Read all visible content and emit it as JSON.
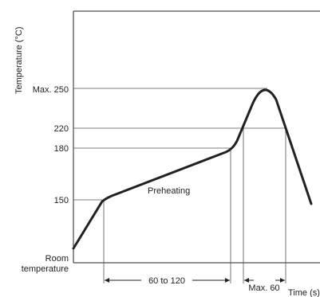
{
  "chart_data": {
    "type": "line",
    "ylabel": "Temperature (°C)",
    "xlabel": "Time (s)",
    "y_ticks": [
      {
        "label": "Max. 250",
        "value": 250
      },
      {
        "label": "220",
        "value": 220
      },
      {
        "label": "180",
        "value": 180
      },
      {
        "label": "150",
        "value": 150
      }
    ],
    "room_label": [
      "Room",
      "temperature"
    ],
    "annotations": {
      "phase": "Preheating",
      "preheat_span": "60 to 120",
      "reflow_span": "Max. 60"
    },
    "colors": {
      "curve": "#222222",
      "guide": "#555555"
    }
  }
}
